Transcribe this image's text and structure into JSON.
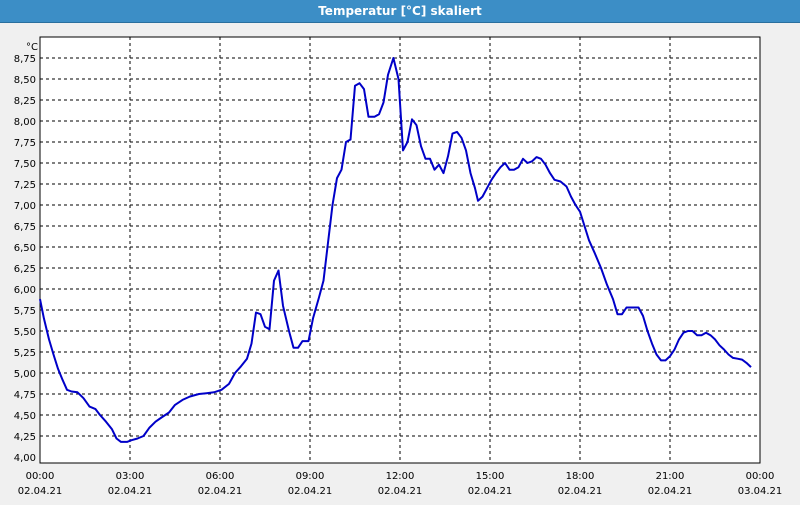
{
  "window": {
    "title": "Temperatur [°C] skaliert"
  },
  "chart_data": {
    "type": "line",
    "title": "Temperatur [°C] skaliert",
    "ylabel": "°C",
    "xlabel": "",
    "ylim": [
      4.0,
      8.8
    ],
    "yticks": [
      "4,00",
      "4,25",
      "4,50",
      "4,75",
      "5,00",
      "5,25",
      "5,50",
      "5,75",
      "6,00",
      "6,25",
      "6,50",
      "6,75",
      "7,00",
      "7,25",
      "7,50",
      "7,75",
      "8,00",
      "8,25",
      "8,50",
      "8,75"
    ],
    "xlim_hours": [
      0,
      24
    ],
    "xticks": [
      {
        "time": "00:00",
        "date": "02.04.21"
      },
      {
        "time": "03:00",
        "date": "02.04.21"
      },
      {
        "time": "06:00",
        "date": "02.04.21"
      },
      {
        "time": "09:00",
        "date": "02.04.21"
      },
      {
        "time": "12:00",
        "date": "02.04.21"
      },
      {
        "time": "15:00",
        "date": "02.04.21"
      },
      {
        "time": "18:00",
        "date": "02.04.21"
      },
      {
        "time": "21:00",
        "date": "02.04.21"
      },
      {
        "time": "00:00",
        "date": "03.04.21"
      }
    ],
    "grid": true,
    "line_color": "#0000c8",
    "series": [
      {
        "points": [
          [
            0.0,
            5.88
          ],
          [
            0.13,
            5.65
          ],
          [
            0.3,
            5.4
          ],
          [
            0.45,
            5.22
          ],
          [
            0.6,
            5.05
          ],
          [
            0.75,
            4.92
          ],
          [
            0.9,
            4.8
          ],
          [
            1.05,
            4.78
          ],
          [
            1.25,
            4.77
          ],
          [
            1.45,
            4.7
          ],
          [
            1.65,
            4.6
          ],
          [
            1.85,
            4.57
          ],
          [
            2.0,
            4.5
          ],
          [
            2.2,
            4.42
          ],
          [
            2.4,
            4.33
          ],
          [
            2.55,
            4.22
          ],
          [
            2.7,
            4.18
          ],
          [
            2.9,
            4.18
          ],
          [
            3.05,
            4.2
          ],
          [
            3.25,
            4.22
          ],
          [
            3.45,
            4.25
          ],
          [
            3.65,
            4.35
          ],
          [
            3.85,
            4.42
          ],
          [
            4.05,
            4.47
          ],
          [
            4.3,
            4.53
          ],
          [
            4.5,
            4.62
          ],
          [
            4.75,
            4.68
          ],
          [
            5.0,
            4.72
          ],
          [
            5.3,
            4.75
          ],
          [
            5.55,
            4.76
          ],
          [
            5.8,
            4.77
          ],
          [
            6.05,
            4.8
          ],
          [
            6.3,
            4.87
          ],
          [
            6.5,
            5.0
          ],
          [
            6.7,
            5.08
          ],
          [
            6.9,
            5.17
          ],
          [
            7.05,
            5.35
          ],
          [
            7.2,
            5.72
          ],
          [
            7.35,
            5.7
          ],
          [
            7.5,
            5.55
          ],
          [
            7.65,
            5.52
          ],
          [
            7.8,
            6.1
          ],
          [
            7.95,
            6.22
          ],
          [
            8.1,
            5.8
          ],
          [
            8.3,
            5.5
          ],
          [
            8.45,
            5.3
          ],
          [
            8.6,
            5.3
          ],
          [
            8.75,
            5.38
          ],
          [
            8.95,
            5.38
          ],
          [
            9.1,
            5.65
          ],
          [
            9.3,
            5.9
          ],
          [
            9.45,
            6.1
          ],
          [
            9.6,
            6.55
          ],
          [
            9.75,
            7.0
          ],
          [
            9.9,
            7.32
          ],
          [
            10.05,
            7.42
          ],
          [
            10.2,
            7.75
          ],
          [
            10.35,
            7.78
          ],
          [
            10.5,
            8.42
          ],
          [
            10.65,
            8.45
          ],
          [
            10.8,
            8.38
          ],
          [
            10.95,
            8.05
          ],
          [
            11.15,
            8.05
          ],
          [
            11.3,
            8.08
          ],
          [
            11.45,
            8.22
          ],
          [
            11.6,
            8.55
          ],
          [
            11.78,
            8.75
          ],
          [
            11.95,
            8.5
          ],
          [
            12.1,
            7.65
          ],
          [
            12.25,
            7.75
          ],
          [
            12.4,
            8.02
          ],
          [
            12.55,
            7.95
          ],
          [
            12.7,
            7.7
          ],
          [
            12.85,
            7.55
          ],
          [
            13.0,
            7.55
          ],
          [
            13.15,
            7.42
          ],
          [
            13.3,
            7.48
          ],
          [
            13.45,
            7.38
          ],
          [
            13.6,
            7.58
          ],
          [
            13.75,
            7.85
          ],
          [
            13.9,
            7.87
          ],
          [
            14.05,
            7.8
          ],
          [
            14.2,
            7.65
          ],
          [
            14.35,
            7.38
          ],
          [
            14.5,
            7.2
          ],
          [
            14.6,
            7.05
          ],
          [
            14.75,
            7.1
          ],
          [
            14.9,
            7.2
          ],
          [
            15.05,
            7.3
          ],
          [
            15.2,
            7.38
          ],
          [
            15.35,
            7.45
          ],
          [
            15.5,
            7.5
          ],
          [
            15.65,
            7.42
          ],
          [
            15.8,
            7.42
          ],
          [
            15.95,
            7.45
          ],
          [
            16.1,
            7.55
          ],
          [
            16.25,
            7.5
          ],
          [
            16.4,
            7.52
          ],
          [
            16.55,
            7.57
          ],
          [
            16.7,
            7.55
          ],
          [
            16.85,
            7.48
          ],
          [
            17.0,
            7.38
          ],
          [
            17.15,
            7.3
          ],
          [
            17.35,
            7.28
          ],
          [
            17.55,
            7.22
          ],
          [
            17.7,
            7.1
          ],
          [
            17.85,
            7.0
          ],
          [
            18.0,
            6.92
          ],
          [
            18.15,
            6.75
          ],
          [
            18.3,
            6.58
          ],
          [
            18.5,
            6.42
          ],
          [
            18.7,
            6.25
          ],
          [
            18.9,
            6.05
          ],
          [
            19.1,
            5.88
          ],
          [
            19.25,
            5.7
          ],
          [
            19.4,
            5.7
          ],
          [
            19.55,
            5.78
          ],
          [
            19.75,
            5.78
          ],
          [
            19.95,
            5.78
          ],
          [
            20.1,
            5.68
          ],
          [
            20.25,
            5.5
          ],
          [
            20.4,
            5.35
          ],
          [
            20.55,
            5.22
          ],
          [
            20.7,
            5.15
          ],
          [
            20.85,
            5.15
          ],
          [
            21.0,
            5.2
          ],
          [
            21.15,
            5.28
          ],
          [
            21.3,
            5.4
          ],
          [
            21.45,
            5.48
          ],
          [
            21.6,
            5.5
          ],
          [
            21.75,
            5.5
          ],
          [
            21.9,
            5.45
          ],
          [
            22.05,
            5.45
          ],
          [
            22.2,
            5.48
          ],
          [
            22.35,
            5.45
          ],
          [
            22.5,
            5.4
          ],
          [
            22.65,
            5.33
          ],
          [
            22.8,
            5.28
          ],
          [
            22.95,
            5.22
          ],
          [
            23.1,
            5.18
          ],
          [
            23.25,
            5.17
          ],
          [
            23.4,
            5.16
          ],
          [
            23.55,
            5.12
          ],
          [
            23.7,
            5.07
          ]
        ]
      }
    ]
  }
}
